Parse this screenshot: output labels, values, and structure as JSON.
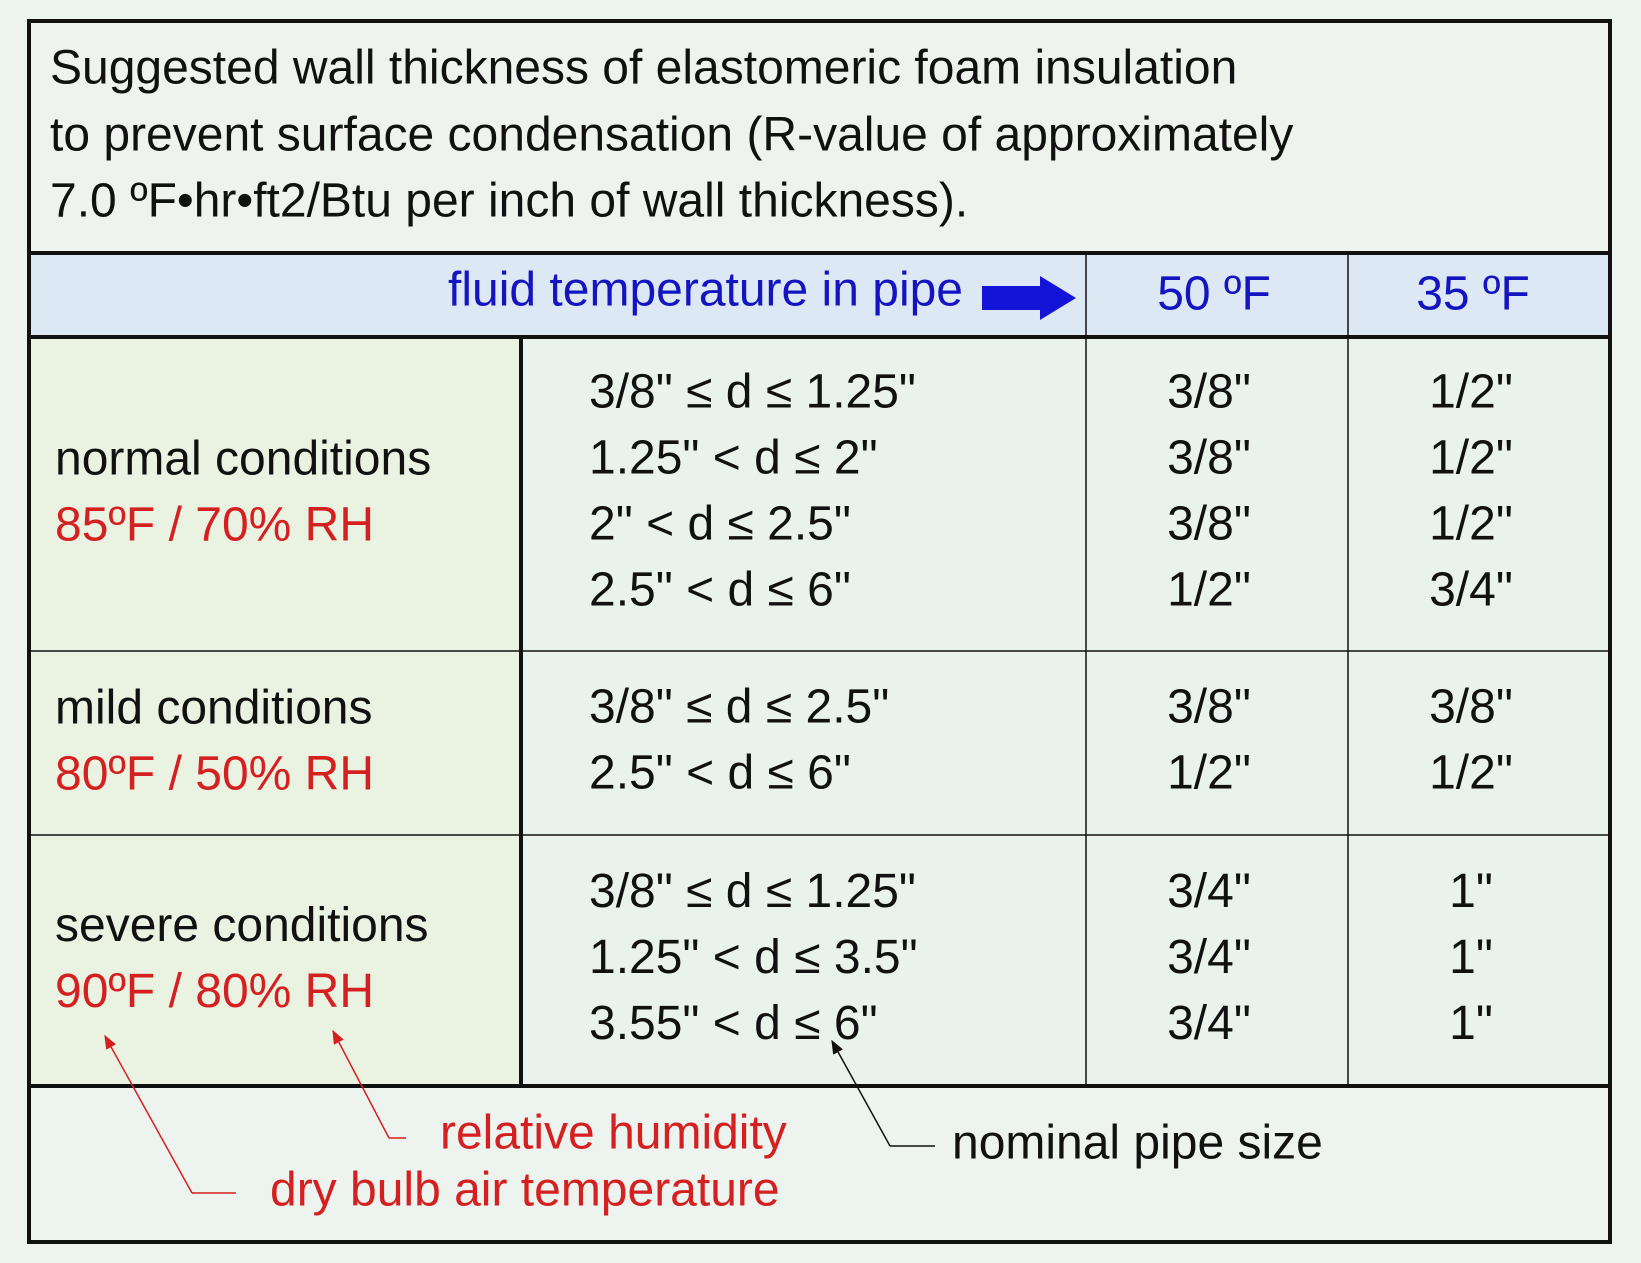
{
  "title": [
    "Suggested wall thickness of elastomeric foam insulation",
    "to prevent surface condensation (R-value of approximately",
    "7.0 ºF•hr•ft2/Btu per inch of wall thickness)."
  ],
  "header": {
    "label": "fluid temperature in pipe",
    "columns": [
      "50 ºF",
      "35 ºF"
    ]
  },
  "groups": [
    {
      "name": "normal conditions",
      "conditions": "85ºF / 70% RH",
      "rows": [
        [
          "3/8\" ≤ d ≤ 1.25\"",
          "3/8\"",
          "1/2\""
        ],
        [
          "1.25\" < d ≤ 2\"",
          "3/8\"",
          "1/2\""
        ],
        [
          "2\" < d ≤ 2.5\"",
          "3/8\"",
          "1/2\""
        ],
        [
          "2.5\" < d ≤ 6\"",
          "1/2\"",
          "3/4\""
        ]
      ]
    },
    {
      "name": "mild conditions",
      "conditions": "80ºF / 50% RH",
      "rows": [
        [
          "3/8\" ≤ d ≤ 2.5\"",
          "3/8\"",
          "3/8\""
        ],
        [
          "2.5\" < d ≤ 6\"",
          "1/2\"",
          "1/2\""
        ]
      ]
    },
    {
      "name": "severe conditions",
      "conditions": "90ºF / 80% RH",
      "rows": [
        [
          "3/8\" ≤ d ≤ 1.25\"",
          "3/4\"",
          "1\""
        ],
        [
          "1.25\" < d ≤ 3.5\"",
          "3/4\"",
          "1\""
        ],
        [
          "3.55\" < d ≤ 6\"",
          "3/4\"",
          "1\""
        ]
      ]
    }
  ],
  "annotations": {
    "relative_humidity": "relative humidity",
    "dry_bulb": "dry bulb air temperature",
    "pipe_size": "nominal pipe size"
  }
}
